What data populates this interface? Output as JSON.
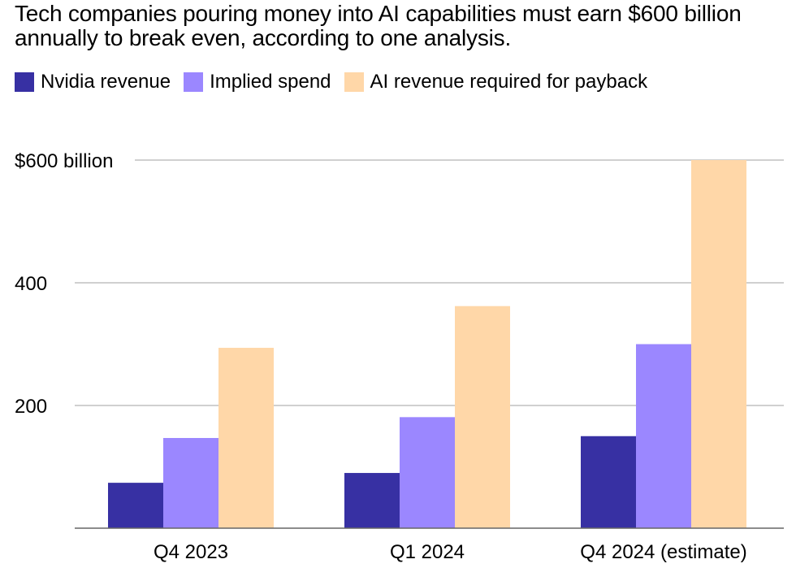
{
  "title": "Tech companies pouring money into AI capabilities must earn $600 billion annually to break even, according to one analysis.",
  "chart_data": {
    "type": "bar",
    "title": "Tech companies pouring money into AI capabilities must earn $600 billion annually to break even, according to one analysis.",
    "categories": [
      "Q4 2023",
      "Q1 2024",
      "Q4 2024 (estimate)"
    ],
    "series": [
      {
        "name": "Nvidia revenue",
        "color": "#3730a3",
        "values": [
          74,
          90,
          150
        ]
      },
      {
        "name": "Implied spend",
        "color": "#9b87ff",
        "values": [
          147,
          181,
          300
        ]
      },
      {
        "name": "AI revenue required for payback",
        "color": "#ffd7a8",
        "values": [
          294,
          362,
          600
        ]
      }
    ],
    "yticks": [
      200,
      400,
      600
    ],
    "ytick_labels": [
      "200",
      "400",
      "$600 billion"
    ],
    "ylim": [
      0,
      600
    ],
    "xlabel": "",
    "ylabel": "",
    "grid": true,
    "legend": "top-left"
  }
}
